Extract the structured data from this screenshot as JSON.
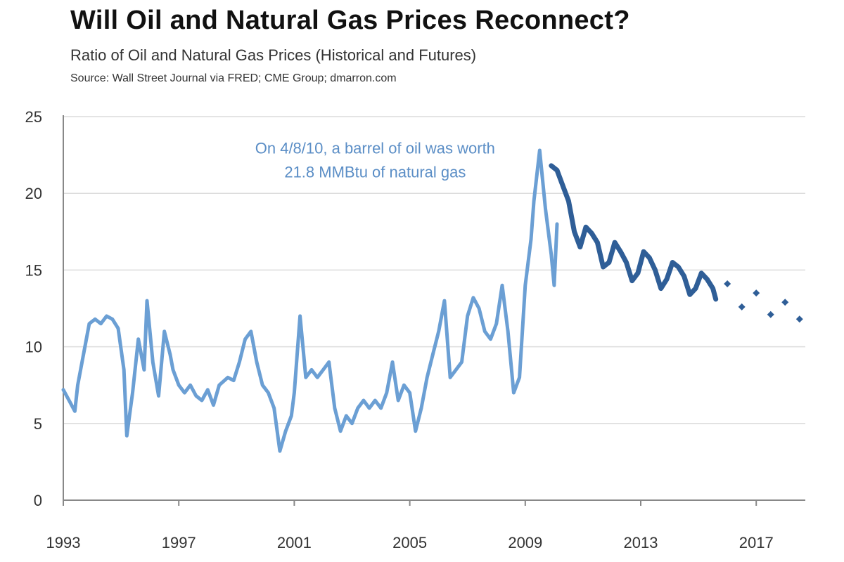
{
  "title": "Will Oil and Natural Gas Prices Reconnect?",
  "subtitle": "Ratio of Oil and Natural Gas Prices (Historical and Futures)",
  "source": "Source: Wall Street Journal via FRED; CME Group; dmarron.com",
  "colors": {
    "historical": "#6b9fd4",
    "recent": "#2f5e97",
    "futures": "#2f5e97",
    "annotation": "#5b8ec6",
    "grid": "#dcdcdc"
  },
  "chart_data": {
    "type": "line",
    "title": "Will Oil and Natural Gas Prices Reconnect?",
    "subtitle": "Ratio of Oil and Natural Gas Prices (Historical and Futures)",
    "xlabel": "",
    "ylabel": "",
    "xlim": [
      1993,
      2018.7
    ],
    "ylim": [
      0,
      25
    ],
    "x_ticks": [
      "1993",
      "1997",
      "2001",
      "2005",
      "2009",
      "2013",
      "2017"
    ],
    "y_ticks": [
      "0",
      "5",
      "10",
      "15",
      "20",
      "25"
    ],
    "grid": "horizontal",
    "annotations": [
      {
        "lines": [
          "On 4/8/10, a barrel of oil was worth",
          "21.8 MMBtu of natural gas"
        ],
        "x": 2003.8,
        "y": 22.6
      }
    ],
    "series": [
      {
        "style": "line-light",
        "x": [
          1993.0,
          1993.2,
          1993.4,
          1993.5,
          1993.7,
          1993.9,
          1994.1,
          1994.3,
          1994.5,
          1994.7,
          1994.9,
          1995.1,
          1995.2,
          1995.4,
          1995.6,
          1995.8,
          1995.9,
          1996.1,
          1996.3,
          1996.5,
          1996.7,
          1996.8,
          1997.0,
          1997.2,
          1997.4,
          1997.6,
          1997.8,
          1998.0,
          1998.2,
          1998.4,
          1998.7,
          1998.9,
          1999.1,
          1999.3,
          1999.5,
          1999.7,
          1999.9,
          2000.1,
          2000.3,
          2000.5,
          2000.7,
          2000.9,
          2001.0,
          2001.2,
          2001.4,
          2001.6,
          2001.8,
          2002.0,
          2002.2,
          2002.4,
          2002.6,
          2002.8,
          2003.0,
          2003.2,
          2003.4,
          2003.6,
          2003.8,
          2004.0,
          2004.2,
          2004.4,
          2004.6,
          2004.8,
          2005.0,
          2005.2,
          2005.4,
          2005.6,
          2005.8,
          2006.0,
          2006.2,
          2006.4,
          2006.6,
          2006.8,
          2007.0,
          2007.2,
          2007.4,
          2007.6,
          2007.8,
          2008.0,
          2008.2,
          2008.4,
          2008.6,
          2008.8,
          2009.0,
          2009.2,
          2009.3,
          2009.5,
          2009.7,
          2009.9,
          2010.0,
          2010.1
        ],
        "y": [
          7.2,
          6.5,
          5.8,
          7.5,
          9.5,
          11.5,
          11.8,
          11.5,
          12.0,
          11.8,
          11.2,
          8.5,
          4.2,
          7.0,
          10.5,
          8.5,
          13.0,
          9.0,
          6.8,
          11.0,
          9.5,
          8.5,
          7.5,
          7.0,
          7.5,
          6.8,
          6.5,
          7.2,
          6.2,
          7.5,
          8.0,
          7.8,
          9.0,
          10.5,
          11.0,
          9.0,
          7.5,
          7.0,
          6.0,
          3.2,
          4.5,
          5.5,
          7.0,
          12.0,
          8.0,
          8.5,
          8.0,
          8.5,
          9.0,
          6.0,
          4.5,
          5.5,
          5.0,
          6.0,
          6.5,
          6.0,
          6.5,
          6.0,
          7.0,
          9.0,
          6.5,
          7.5,
          7.0,
          4.5,
          6.0,
          8.0,
          9.5,
          11.0,
          13.0,
          8.0,
          8.5,
          9.0,
          12.0,
          13.2,
          12.5,
          11.0,
          10.5,
          11.5,
          14.0,
          11.0,
          7.0,
          8.0,
          14.0,
          17.0,
          19.5,
          22.8,
          19.0,
          16.0,
          14.0,
          18.0
        ]
      },
      {
        "style": "line-dark",
        "x": [
          2009.9,
          2010.1,
          2010.3,
          2010.5,
          2010.7,
          2010.9,
          2011.1,
          2011.3,
          2011.5,
          2011.7,
          2011.9,
          2012.1,
          2012.3,
          2012.5,
          2012.7,
          2012.9,
          2013.1,
          2013.3,
          2013.5,
          2013.7,
          2013.9,
          2014.1,
          2014.3,
          2014.5,
          2014.7,
          2014.9,
          2015.1,
          2015.3,
          2015.5,
          2015.6
        ],
        "y": [
          21.8,
          21.5,
          20.5,
          19.5,
          17.5,
          16.5,
          17.8,
          17.4,
          16.8,
          15.2,
          15.5,
          16.8,
          16.2,
          15.5,
          14.3,
          14.8,
          16.2,
          15.8,
          15.0,
          13.8,
          14.4,
          15.5,
          15.2,
          14.6,
          13.4,
          13.8,
          14.8,
          14.4,
          13.8,
          13.1
        ]
      },
      {
        "style": "dots",
        "x": [
          2016.0,
          2016.5,
          2017.0,
          2017.5,
          2018.0,
          2018.5
        ],
        "y": [
          14.1,
          12.6,
          13.5,
          12.1,
          12.9,
          11.8
        ]
      }
    ]
  }
}
